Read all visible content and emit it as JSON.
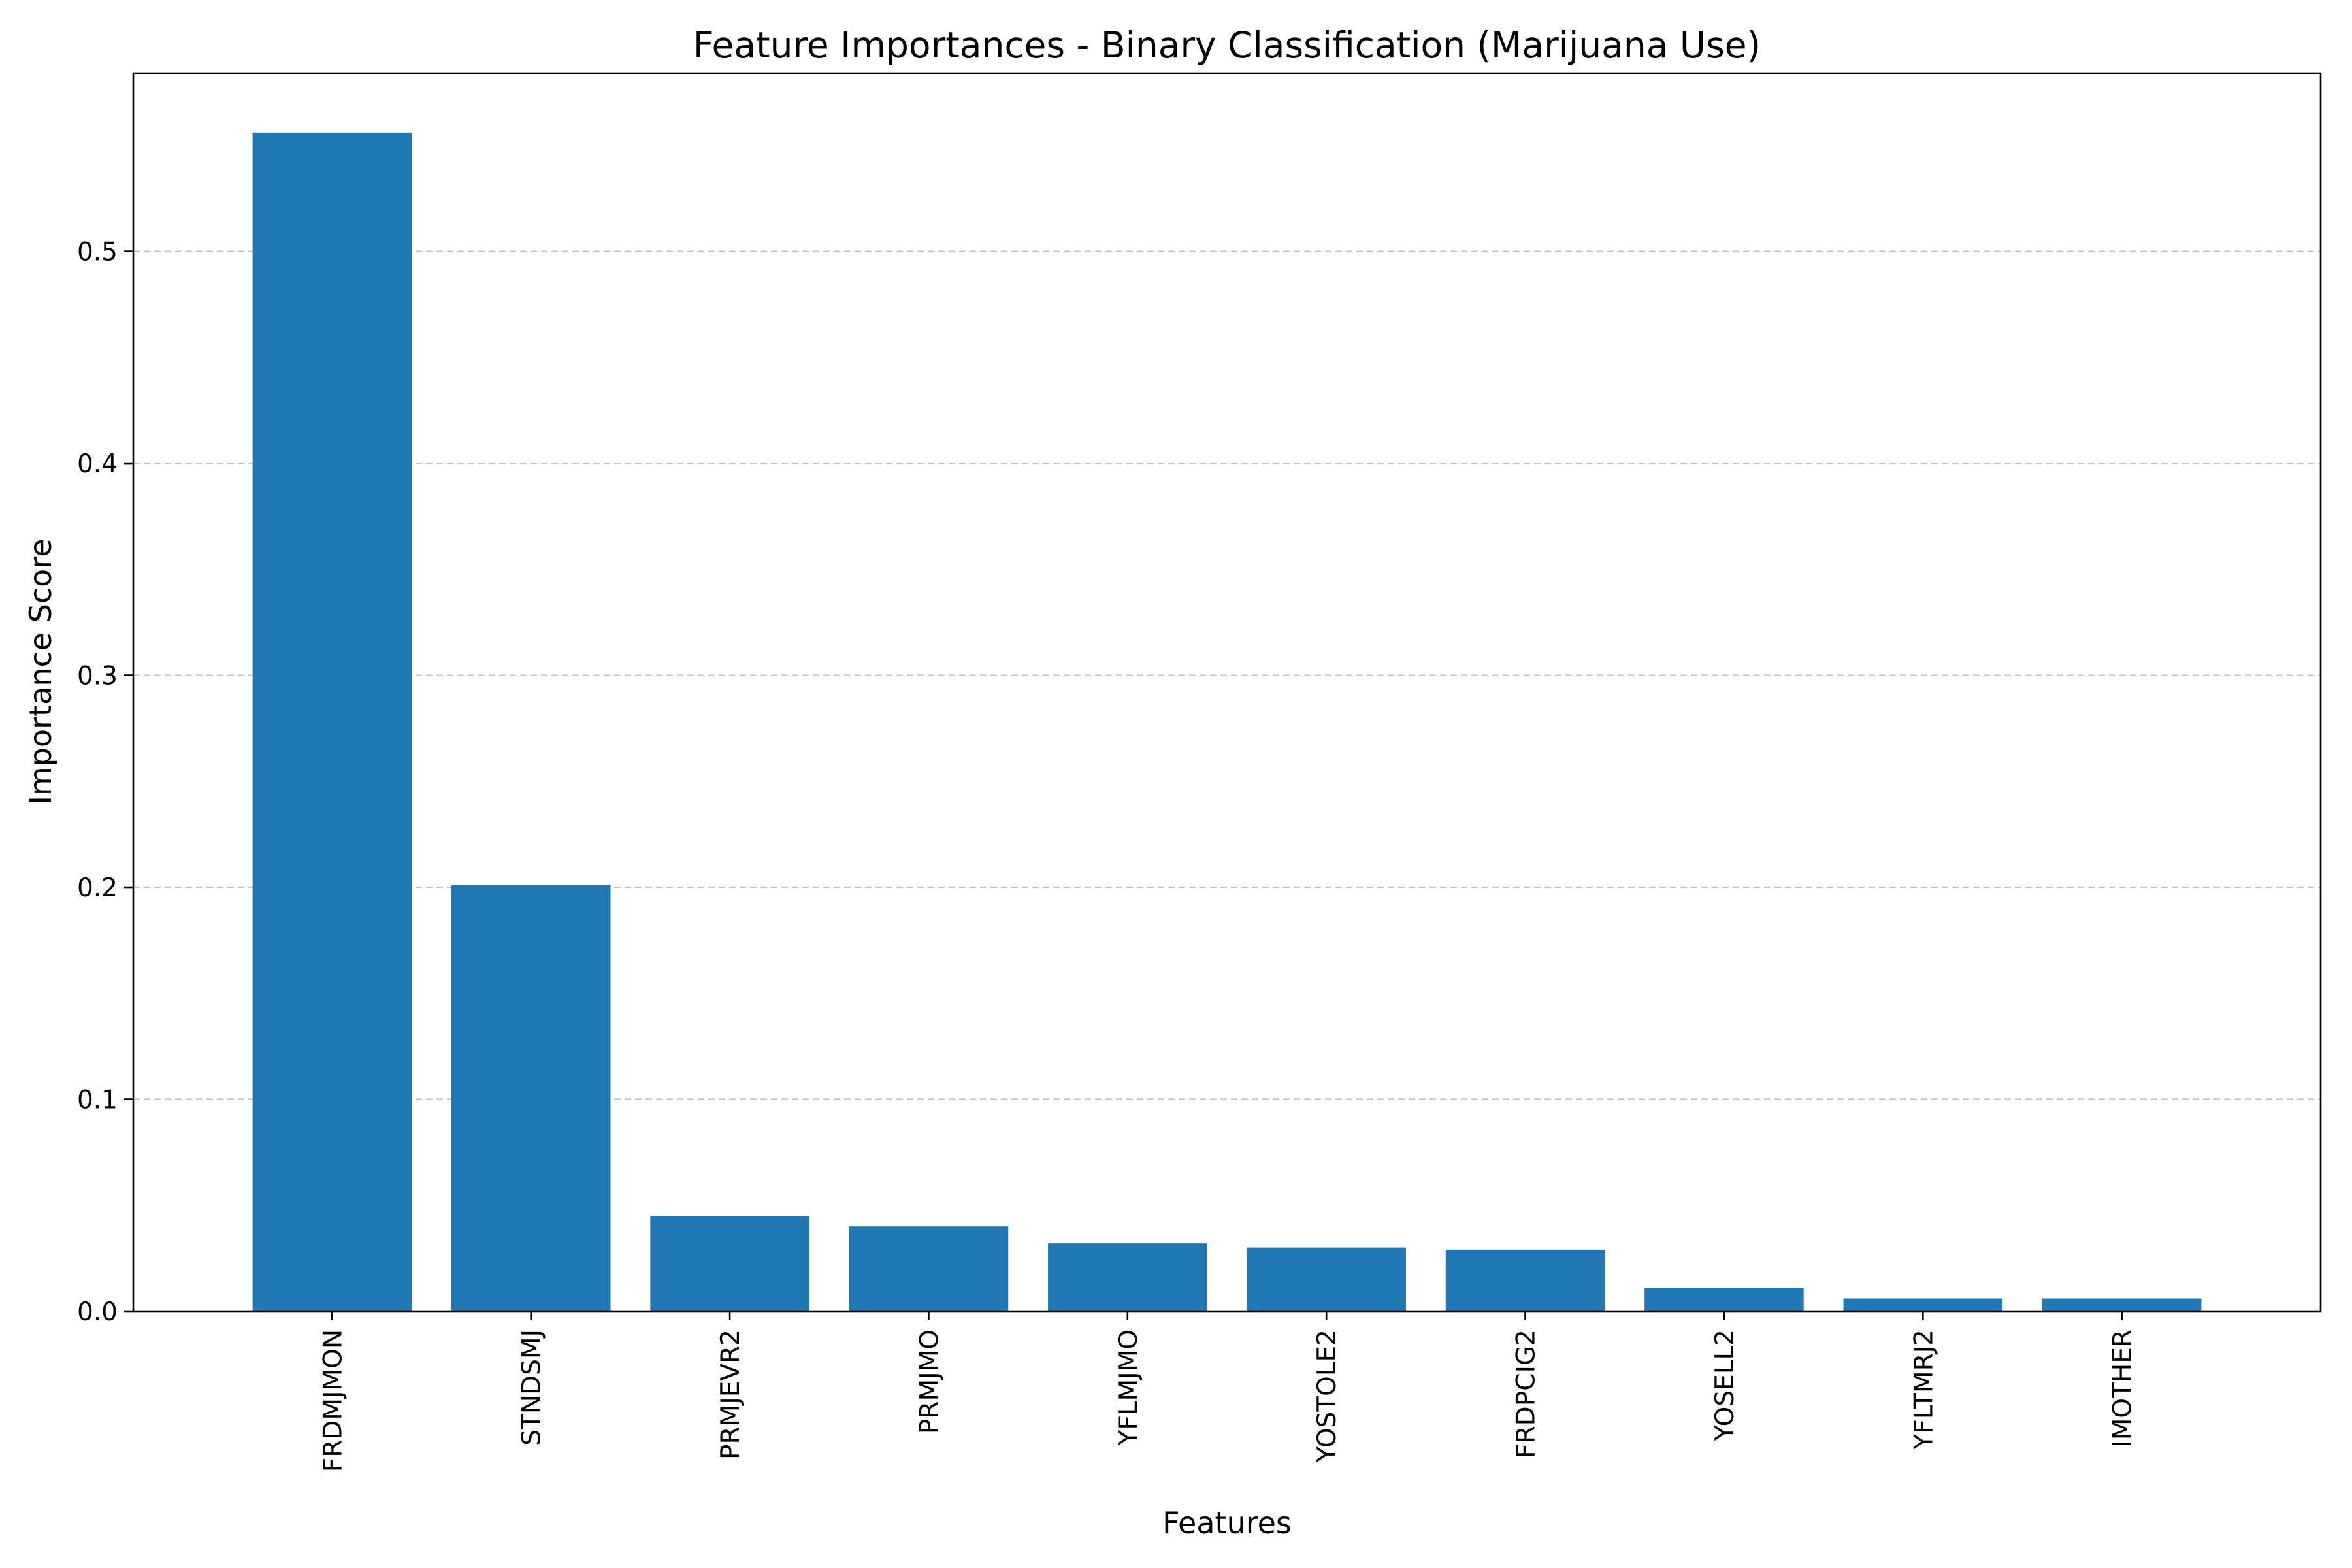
{
  "chart_data": {
    "type": "bar",
    "title": "Feature Importances - Binary Classification (Marijuana Use)",
    "xlabel": "Features",
    "ylabel": "Importance Score",
    "categories": [
      "FRDMJMON",
      "STNDSMJ",
      "PRMJEVR2",
      "PRMJMO",
      "YFLMJMO",
      "YOSTOLE2",
      "FRDPCIG2",
      "YOSELL2",
      "YFLTMRJ2",
      "IMOTHER"
    ],
    "values": [
      0.556,
      0.201,
      0.045,
      0.04,
      0.032,
      0.03,
      0.029,
      0.011,
      0.006,
      0.006
    ],
    "ylim": [
      0,
      0.584
    ],
    "yticks": [
      0.0,
      0.1,
      0.2,
      0.3,
      0.4,
      0.5
    ],
    "ytick_labels": [
      "0.0",
      "0.1",
      "0.2",
      "0.3",
      "0.4",
      "0.5"
    ],
    "grid": "y-axis dashed",
    "bar_color": "#1f77b4",
    "grid_color": "#b0b0b0"
  }
}
